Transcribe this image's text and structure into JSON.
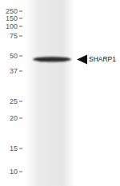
{
  "chart_data": {
    "type": "western_blot",
    "categories": [
      "SHARP1"
    ],
    "values": [
      47
    ],
    "color": "#2b2b2b",
    "yticks": [
      250,
      150,
      100,
      75,
      50,
      37,
      25,
      20,
      15,
      10
    ]
  }
}
